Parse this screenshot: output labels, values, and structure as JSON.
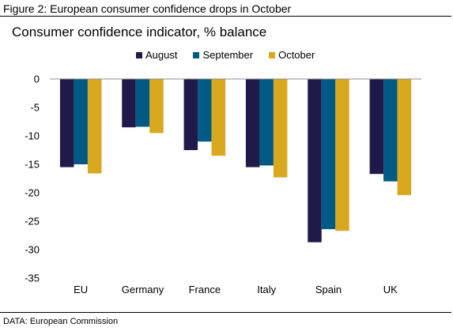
{
  "figure_title": "Figure 2: European consumer confidence drops in October",
  "source": "DATA: European Commission",
  "colors": {
    "August": "#1f1a4a",
    "September": "#005a84",
    "October": "#d8a81f"
  },
  "chart_data": {
    "type": "bar",
    "title": "Consumer confidence indicator, % balance",
    "xlabel": "",
    "ylabel": "",
    "categories": [
      "EU",
      "Germany",
      "France",
      "Italy",
      "Spain",
      "UK"
    ],
    "series": [
      {
        "name": "August",
        "values": [
          -15.5,
          -8.5,
          -12.5,
          -15.5,
          -28.7,
          -16.7
        ]
      },
      {
        "name": "September",
        "values": [
          -15,
          -8.4,
          -11,
          -15.2,
          -26.4,
          -18
        ]
      },
      {
        "name": "October",
        "values": [
          -16.6,
          -9.5,
          -13.5,
          -17.3,
          -26.7,
          -20.4
        ]
      }
    ],
    "ylim": [
      -35,
      0
    ],
    "yticks": [
      0,
      -5,
      -10,
      -15,
      -20,
      -25,
      -30,
      -35
    ],
    "grid": false,
    "legend_position": "top"
  }
}
